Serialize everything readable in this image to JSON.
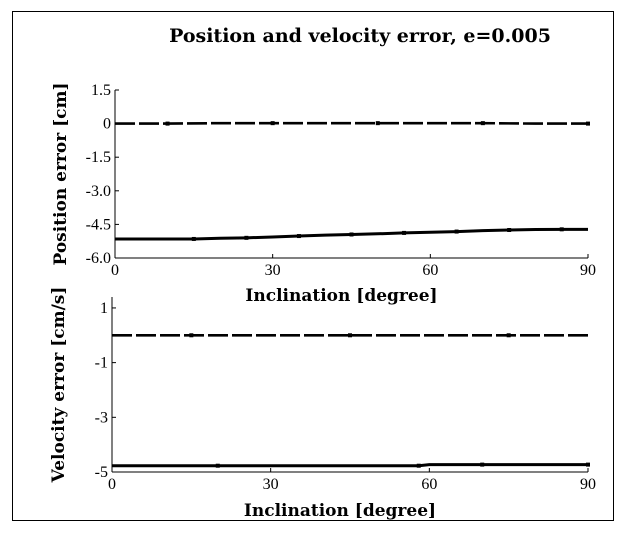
{
  "chart_data": [
    {
      "type": "line",
      "title": "Position and velocity error, e=0.005",
      "xlabel": "Inclination [degree]",
      "ylabel": "Position error [cm]",
      "xlim": [
        0,
        90
      ],
      "ylim": [
        -6.0,
        1.5
      ],
      "xticks": [
        "0",
        "30",
        "60",
        "90"
      ],
      "yticks": [
        "1.5",
        "0",
        "-1.5",
        "-3.0",
        "-4.5",
        "-6.0"
      ],
      "grid": false,
      "series": [
        {
          "style": "dashed",
          "x": [
            0,
            10,
            20,
            30,
            40,
            50,
            60,
            70,
            80,
            90
          ],
          "y": [
            0.0,
            0.0,
            0.02,
            0.02,
            0.02,
            0.02,
            0.02,
            0.02,
            0.0,
            0.0
          ]
        },
        {
          "style": "solid",
          "x": [
            0,
            15,
            20,
            25,
            30,
            35,
            40,
            45,
            50,
            55,
            60,
            65,
            70,
            75,
            80,
            85,
            90
          ],
          "y": [
            -5.15,
            -5.15,
            -5.12,
            -5.1,
            -5.06,
            -5.02,
            -4.98,
            -4.95,
            -4.92,
            -4.88,
            -4.85,
            -4.82,
            -4.78,
            -4.75,
            -4.73,
            -4.72,
            -4.72
          ]
        }
      ]
    },
    {
      "type": "line",
      "title": "",
      "xlabel": "Inclination [degree]",
      "ylabel": "Velocity error [cm/s]",
      "xlim": [
        0,
        90
      ],
      "ylim": [
        -5,
        1.4
      ],
      "xticks": [
        "0",
        "30",
        "60",
        "90"
      ],
      "yticks": [
        "1",
        "-1",
        "-3",
        "-5"
      ],
      "grid": false,
      "series": [
        {
          "style": "dashed",
          "x": [
            0,
            15,
            30,
            45,
            60,
            75,
            90
          ],
          "y": [
            0.0,
            0.0,
            0.0,
            0.0,
            0.0,
            0.0,
            0.0
          ]
        },
        {
          "style": "solid",
          "x": [
            0,
            20,
            40,
            58,
            60,
            70,
            80,
            90
          ],
          "y": [
            -4.77,
            -4.77,
            -4.77,
            -4.77,
            -4.73,
            -4.73,
            -4.73,
            -4.73
          ]
        }
      ]
    }
  ]
}
